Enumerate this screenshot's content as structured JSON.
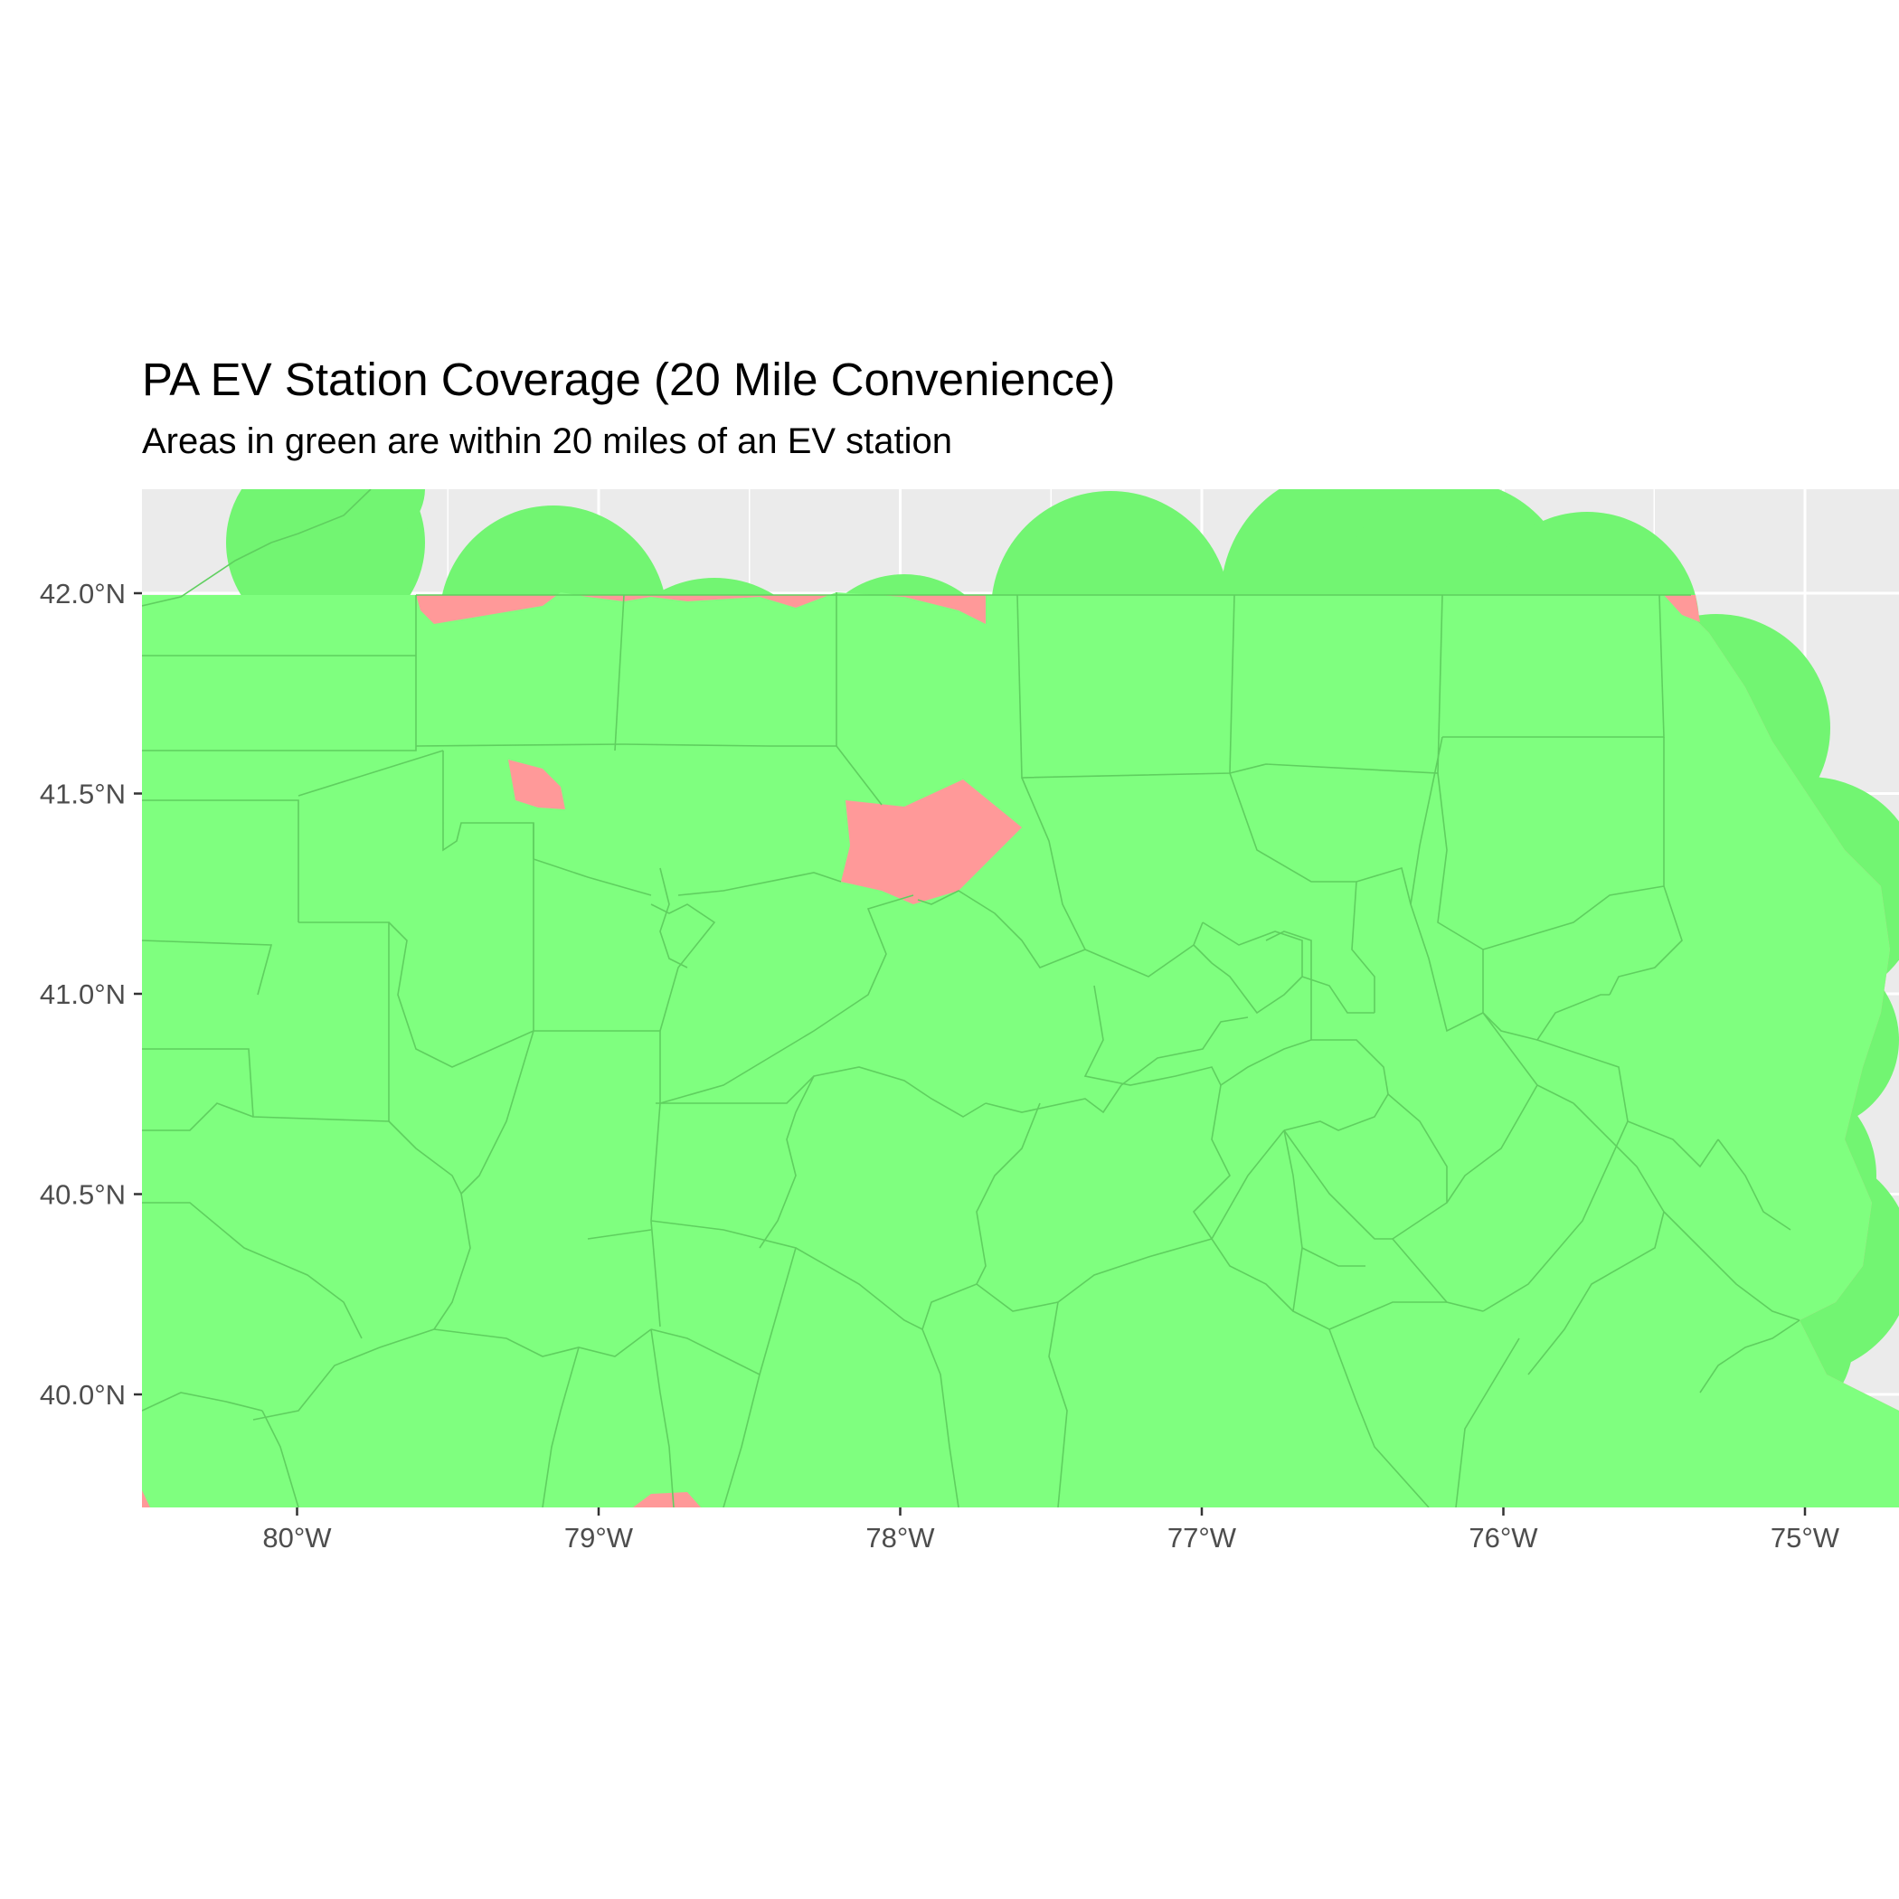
{
  "title": "PA EV Station Coverage (20 Mile Convenience)",
  "subtitle": "Areas in green are within 20 miles of an EV station",
  "colors": {
    "panel_background": "#ebebeb",
    "grid": "#ffffff",
    "covered": "#7fff7f",
    "covered_border": "#5fcf5f",
    "not_covered": "#ff9999",
    "buffer_outside": "#72f572",
    "tick_text": "#4d4d4d",
    "tick_mark": "#333333"
  },
  "chart_data": {
    "type": "map",
    "title": "PA EV Station Coverage (20 Mile Convenience)",
    "subtitle": "Areas in green are within 20 miles of an EV station",
    "xlim": [
      -80.5,
      -74.7
    ],
    "ylim": [
      39.72,
      42.27
    ],
    "x_ticks": [
      {
        "value": -80,
        "label": "80°W"
      },
      {
        "value": -79,
        "label": "79°W"
      },
      {
        "value": -78,
        "label": "78°W"
      },
      {
        "value": -77,
        "label": "77°W"
      },
      {
        "value": -76,
        "label": "76°W"
      },
      {
        "value": -75,
        "label": "75°W"
      }
    ],
    "y_ticks": [
      {
        "value": 40.0,
        "label": "40.0°N"
      },
      {
        "value": 40.5,
        "label": "40.5°N"
      },
      {
        "value": 41.0,
        "label": "41.0°N"
      },
      {
        "value": 41.5,
        "label": "41.5°N"
      },
      {
        "value": 42.0,
        "label": "42.0°N"
      }
    ],
    "grid": true,
    "legend": "none",
    "uncovered_areas": [
      {
        "name": "north-central gap",
        "lon": -77.98,
        "lat": 41.42
      },
      {
        "name": "western gap",
        "lon": -79.2,
        "lat": 41.56
      },
      {
        "name": "northern border strip",
        "lon": -79.5,
        "lat": 41.98
      }
    ]
  }
}
